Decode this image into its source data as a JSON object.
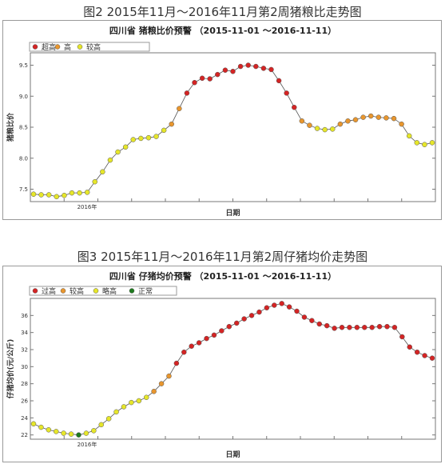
{
  "figures": [
    {
      "fig_title": "图2   2015年11月～2016年11月第2周猪粮比走势图",
      "chart_title": "四川省 猪粮比价预警 （2015-11-01 ～2016-11-11）",
      "legend": [
        {
          "label": "超高",
          "color": "#d42424"
        },
        {
          "label": "高",
          "color": "#e8962e"
        },
        {
          "label": "较高",
          "color": "#e6e62a"
        }
      ],
      "xlabel": "日期",
      "ylabel": "猪粮比价",
      "x_tick_label": "2016年"
    },
    {
      "fig_title": "图3   2015年11月～2016年11月第2周仔猪均价走势图",
      "chart_title": "四川省 仔猪均价预警 （2015-11-01 ～2016-11-11）",
      "legend": [
        {
          "label": "过高",
          "color": "#d42424"
        },
        {
          "label": "较高",
          "color": "#e8962e"
        },
        {
          "label": "略高",
          "color": "#e6e62a"
        },
        {
          "label": "正常",
          "color": "#1e7a1e"
        }
      ],
      "xlabel": "日期",
      "ylabel": "仔猪均价(元/公斤)",
      "x_tick_label": "2016年"
    }
  ],
  "chart_data": [
    {
      "type": "line",
      "title": "四川省 猪粮比价预警 （2015-11-01 ～2016-11-11）",
      "xlabel": "日期",
      "ylabel": "猪粮比价",
      "ylim": [
        7.3,
        9.7
      ],
      "yticks": [
        "7.5",
        "8.0",
        "8.5",
        "9.0",
        "9.5"
      ],
      "x_ticks": [
        "2016年"
      ],
      "legend_position": "top-left",
      "series": [
        {
          "values": [
            7.42,
            7.41,
            7.41,
            7.38,
            7.4,
            7.44,
            7.44,
            7.45,
            7.62,
            7.78,
            7.97,
            8.1,
            8.18,
            8.3,
            8.32,
            8.33,
            8.35,
            8.45,
            8.55,
            8.8,
            9.05,
            9.22,
            9.29,
            9.28,
            9.35,
            9.42,
            9.4,
            9.48,
            9.5,
            9.48,
            9.45,
            9.43,
            9.25,
            9.05,
            8.82,
            8.6,
            8.53,
            8.48,
            8.46,
            8.47,
            8.55,
            8.6,
            8.62,
            8.66,
            8.68,
            8.66,
            8.65,
            8.64,
            8.55,
            8.36,
            8.25,
            8.22,
            8.25
          ],
          "levels": [
            "较高",
            "较高",
            "较高",
            "较高",
            "较高",
            "较高",
            "较高",
            "较高",
            "较高",
            "较高",
            "较高",
            "较高",
            "较高",
            "较高",
            "较高",
            "较高",
            "较高",
            "较高",
            "高",
            "高",
            "超高",
            "超高",
            "超高",
            "超高",
            "超高",
            "超高",
            "超高",
            "超高",
            "超高",
            "超高",
            "超高",
            "超高",
            "超高",
            "超高",
            "超高",
            "高",
            "高",
            "较高",
            "较高",
            "较高",
            "高",
            "高",
            "高",
            "高",
            "高",
            "高",
            "高",
            "高",
            "高",
            "较高",
            "较高",
            "较高",
            "较高"
          ]
        }
      ]
    },
    {
      "type": "line",
      "title": "四川省 仔猪均价预警 （2015-11-01 ～2016-11-11）",
      "xlabel": "日期",
      "ylabel": "仔猪均价(元/公斤)",
      "ylim": [
        21.5,
        38.0
      ],
      "yticks": [
        "22",
        "24",
        "26",
        "28",
        "30",
        "32",
        "34",
        "36"
      ],
      "x_ticks": [
        "2016年"
      ],
      "legend_position": "top-left",
      "series": [
        {
          "values": [
            23.3,
            22.9,
            22.6,
            22.4,
            22.2,
            22.1,
            22.0,
            22.2,
            22.5,
            23.2,
            23.9,
            24.7,
            25.3,
            25.8,
            26.0,
            26.4,
            27.1,
            28.0,
            28.9,
            30.4,
            31.7,
            32.4,
            32.8,
            33.3,
            33.7,
            34.2,
            34.7,
            35.1,
            35.6,
            36.0,
            36.4,
            36.9,
            37.2,
            37.4,
            37.0,
            36.5,
            35.8,
            35.4,
            35.0,
            34.8,
            34.5,
            34.6,
            34.6,
            34.6,
            34.6,
            34.6,
            34.7,
            34.7,
            34.6,
            33.5,
            32.3,
            31.7,
            31.3,
            31.0
          ],
          "levels": [
            "略高",
            "略高",
            "略高",
            "略高",
            "略高",
            "略高",
            "正常",
            "略高",
            "略高",
            "略高",
            "略高",
            "略高",
            "略高",
            "略高",
            "略高",
            "略高",
            "较高",
            "较高",
            "较高",
            "过高",
            "过高",
            "过高",
            "过高",
            "过高",
            "过高",
            "过高",
            "过高",
            "过高",
            "过高",
            "过高",
            "过高",
            "过高",
            "过高",
            "过高",
            "过高",
            "过高",
            "过高",
            "过高",
            "过高",
            "过高",
            "过高",
            "过高",
            "过高",
            "过高",
            "过高",
            "过高",
            "过高",
            "过高",
            "过高",
            "过高",
            "过高",
            "过高",
            "过高",
            "过高"
          ]
        }
      ]
    }
  ]
}
